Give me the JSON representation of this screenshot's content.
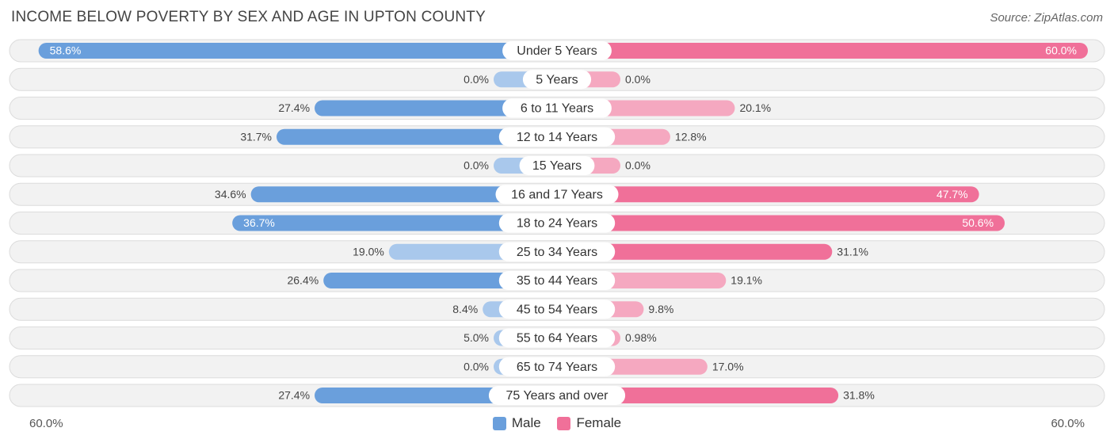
{
  "header": {
    "title": "INCOME BELOW POVERTY BY SEX AND AGE IN UPTON COUNTY",
    "source": "Source: ZipAtlas.com"
  },
  "colors": {
    "male_strong": "#6a9fdc",
    "male_light": "#a9c8ec",
    "female_strong": "#f07099",
    "female_light": "#f5a8c0",
    "row_bg": "#f2f2f2",
    "row_border": "#dcdcdc"
  },
  "legend": {
    "male": "Male",
    "female": "Female"
  },
  "axis": {
    "left_label": "60.0%",
    "right_label": "60.0%"
  },
  "chart_data": {
    "type": "bar",
    "orientation": "horizontal-diverging",
    "title": "INCOME BELOW POVERTY BY SEX AND AGE IN UPTON COUNTY",
    "xlim": [
      -60,
      60
    ],
    "categories": [
      "Under 5 Years",
      "5 Years",
      "6 to 11 Years",
      "12 to 14 Years",
      "15 Years",
      "16 and 17 Years",
      "18 to 24 Years",
      "25 to 34 Years",
      "35 to 44 Years",
      "45 to 54 Years",
      "55 to 64 Years",
      "65 to 74 Years",
      "75 Years and over"
    ],
    "series": [
      {
        "name": "Male",
        "values": [
          58.6,
          0.0,
          27.4,
          31.7,
          0.0,
          34.6,
          36.7,
          19.0,
          26.4,
          8.4,
          5.0,
          0.0,
          27.4
        ],
        "labels": [
          "58.6%",
          "0.0%",
          "27.4%",
          "31.7%",
          "0.0%",
          "34.6%",
          "36.7%",
          "19.0%",
          "26.4%",
          "8.4%",
          "5.0%",
          "0.0%",
          "27.4%"
        ]
      },
      {
        "name": "Female",
        "values": [
          60.0,
          0.0,
          20.1,
          12.8,
          0.0,
          47.7,
          50.6,
          31.1,
          19.1,
          9.8,
          0.98,
          17.0,
          31.8
        ],
        "labels": [
          "60.0%",
          "0.0%",
          "20.1%",
          "12.8%",
          "0.0%",
          "47.7%",
          "50.6%",
          "31.1%",
          "19.1%",
          "9.8%",
          "0.98%",
          "17.0%",
          "31.8%"
        ]
      }
    ]
  }
}
